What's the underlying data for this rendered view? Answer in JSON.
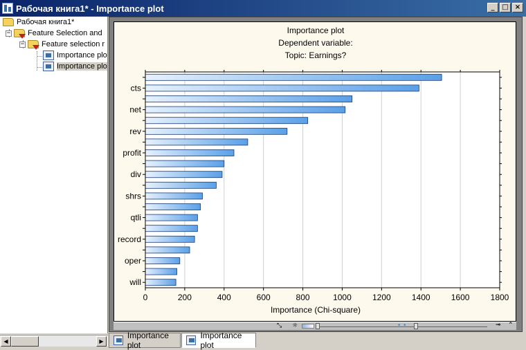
{
  "window": {
    "title": "Рабочая книга1* - Importance plot",
    "buttons": {
      "minimize": "_",
      "maximize": "□",
      "close": "×"
    }
  },
  "tree": {
    "items": [
      {
        "label": "Рабочая книга1*"
      },
      {
        "label": "Feature Selection and"
      },
      {
        "label": "Feature selection r"
      },
      {
        "label": "Importance plo"
      },
      {
        "label": "Importance plo"
      }
    ]
  },
  "tabs": [
    {
      "label": "Importance plot"
    },
    {
      "label": "Importance plot"
    }
  ],
  "chart_data": {
    "type": "bar",
    "orientation": "horizontal",
    "title": [
      "Importance plot",
      "Dependent variable:",
      "Topic: Earnings?"
    ],
    "xlabel": "Importance (Chi-square)",
    "ylabel": "",
    "xlim": [
      0,
      1800
    ],
    "xticks": [
      0,
      200,
      400,
      600,
      800,
      1000,
      1200,
      1400,
      1600,
      1800
    ],
    "grid": true,
    "categories": [
      "",
      "cts",
      "",
      "net",
      "",
      "rev",
      "",
      "profit",
      "",
      "div",
      "",
      "shrs",
      "",
      "qtli",
      "",
      "record",
      "",
      "oper",
      "",
      "will"
    ],
    "values": [
      1505,
      1390,
      1050,
      1015,
      825,
      720,
      520,
      450,
      400,
      390,
      360,
      290,
      280,
      265,
      265,
      250,
      225,
      175,
      160,
      155
    ],
    "bar_color": "#5aa0e8"
  }
}
